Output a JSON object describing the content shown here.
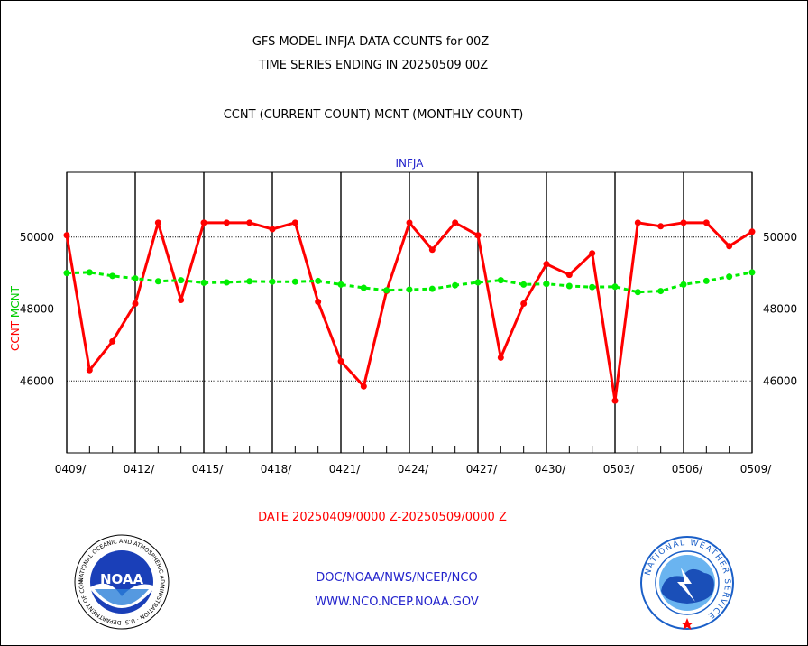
{
  "header": {
    "title_line1": "GFS MODEL INFJA DATA COUNTS for 00Z",
    "title_line2": "TIME SERIES ENDING IN 20250509 00Z",
    "subtitle": "CCNT (CURRENT COUNT) MCNT (MONTHLY COUNT)"
  },
  "footer": {
    "date_range": "DATE 20250409/0000 Z-20250509/0000 Z",
    "org": "DOC/NOAA/NWS/NCEP/NCO",
    "url": "WWW.NCO.NCEP.NOAA.GOV"
  },
  "logos": {
    "noaa": {
      "icon": "noaa-logo",
      "text": "NOAA",
      "ring_text": "NATIONAL OCEANIC AND ATMOSPHERIC ADMINISTRATION · U.S. DEPARTMENT OF COMMERCE"
    },
    "nws": {
      "icon": "nws-logo",
      "ring_text": "NATIONAL WEATHER SERVICE"
    }
  },
  "chart_data": {
    "type": "line",
    "title": "INFJA",
    "ylabel_left": [
      "CCNT",
      "MCNT"
    ],
    "ylim": [
      44000,
      51800
    ],
    "y_ticks": [
      46000,
      48000,
      50000
    ],
    "grid": true,
    "x_tick_labels": [
      "0409/",
      "0412/",
      "0415/",
      "0418/",
      "0421/",
      "0424/",
      "0427/",
      "0430/",
      "0503/",
      "0506/",
      "0509/"
    ],
    "x": [
      "0409",
      "0410",
      "0411",
      "0412",
      "0413",
      "0414",
      "0415",
      "0416",
      "0417",
      "0418",
      "0419",
      "0420",
      "0421",
      "0422",
      "0423",
      "0424",
      "0425",
      "0426",
      "0427",
      "0428",
      "0429",
      "0430",
      "0501",
      "0502",
      "0503",
      "0504",
      "0505",
      "0506",
      "0507",
      "0508",
      "0509"
    ],
    "series": [
      {
        "name": "CCNT",
        "color": "#ff0000",
        "style": "solid",
        "values": [
          50050,
          46300,
          47100,
          48150,
          50400,
          48250,
          50400,
          50400,
          50400,
          50220,
          50400,
          48200,
          46550,
          45850,
          48500,
          50400,
          49650,
          50400,
          50050,
          46650,
          48150,
          49250,
          48950,
          49550,
          45450,
          50400,
          50300,
          50400,
          50400,
          49750,
          50150
        ]
      },
      {
        "name": "MCNT",
        "color": "#00ee00",
        "style": "dashed",
        "values": [
          49000,
          49020,
          48920,
          48850,
          48770,
          48800,
          48730,
          48740,
          48770,
          48760,
          48760,
          48780,
          48680,
          48590,
          48520,
          48540,
          48560,
          48660,
          48740,
          48800,
          48680,
          48700,
          48640,
          48610,
          48620,
          48470,
          48500,
          48680,
          48780,
          48900,
          49020
        ]
      }
    ]
  }
}
